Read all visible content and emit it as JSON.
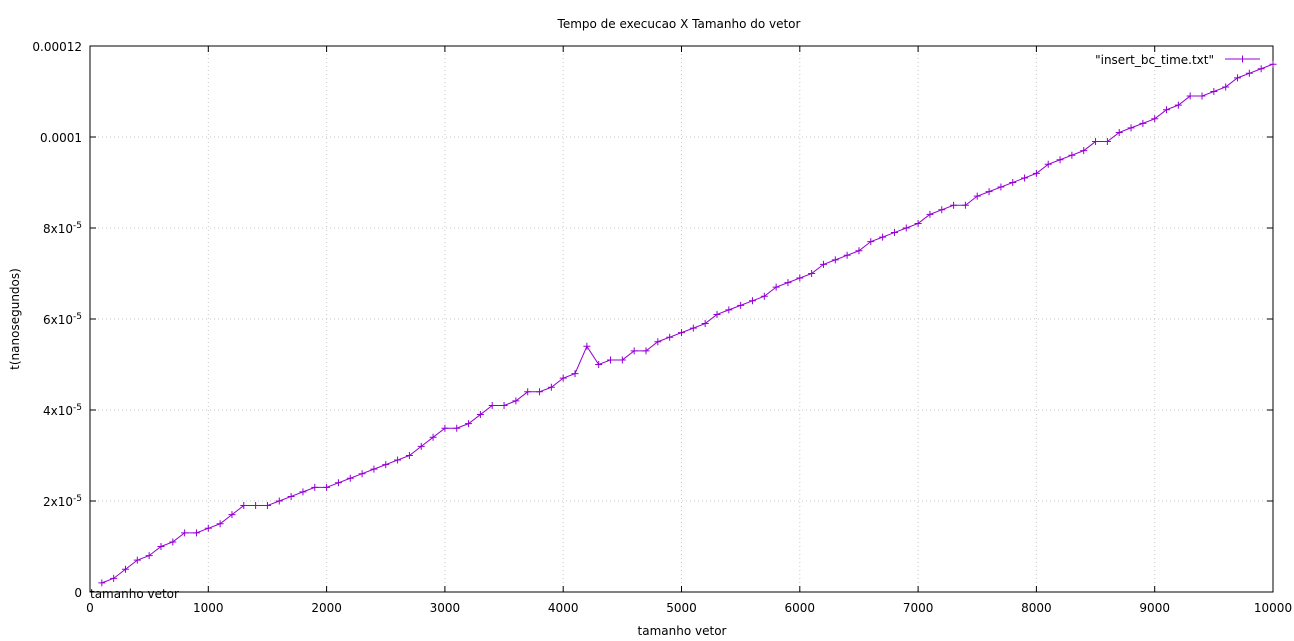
{
  "chart_data": {
    "type": "line",
    "title": "Tempo de execucao X Tamanho do vetor",
    "xlabel": "tamanho vetor",
    "ylabel": "t(nanosegundos)",
    "xlim": [
      0,
      10000
    ],
    "ylim": [
      0,
      0.00012
    ],
    "grid": true,
    "legend_position": "top-right",
    "annotation": "tamanho vetor",
    "x_ticks": [
      0,
      1000,
      2000,
      3000,
      4000,
      5000,
      6000,
      7000,
      8000,
      9000,
      10000
    ],
    "x_tick_labels": [
      "0",
      "1000",
      "2000",
      "3000",
      "4000",
      "5000",
      "6000",
      "7000",
      "8000",
      "9000",
      "10000"
    ],
    "y_ticks": [
      0,
      2e-05,
      4e-05,
      6e-05,
      8e-05,
      0.0001,
      0.00012
    ],
    "y_tick_mantissas": [
      "0",
      "2x10",
      "4x10",
      "6x10",
      "8x10",
      "0.0001",
      "0.00012"
    ],
    "y_tick_exponents": [
      "",
      "-5",
      "-5",
      "-5",
      "-5",
      "",
      ""
    ],
    "series": [
      {
        "name": "\"insert_bc_time.txt\"",
        "color": "#9400d3",
        "marker": "plus",
        "x": [
          100,
          200,
          300,
          400,
          500,
          600,
          700,
          800,
          900,
          1000,
          1100,
          1200,
          1300,
          1400,
          1500,
          1600,
          1700,
          1800,
          1900,
          2000,
          2100,
          2200,
          2300,
          2400,
          2500,
          2600,
          2700,
          2800,
          2900,
          3000,
          3100,
          3200,
          3300,
          3400,
          3500,
          3600,
          3700,
          3800,
          3900,
          4000,
          4100,
          4200,
          4300,
          4400,
          4500,
          4600,
          4700,
          4800,
          4900,
          5000,
          5100,
          5200,
          5300,
          5400,
          5500,
          5600,
          5700,
          5800,
          5900,
          6000,
          6100,
          6200,
          6300,
          6400,
          6500,
          6600,
          6700,
          6800,
          6900,
          7000,
          7100,
          7200,
          7300,
          7400,
          7500,
          7600,
          7700,
          7800,
          7900,
          8000,
          8100,
          8200,
          8300,
          8400,
          8500,
          8600,
          8700,
          8800,
          8900,
          9000,
          9100,
          9200,
          9300,
          9400,
          9500,
          9600,
          9700,
          9800,
          9900,
          10000
        ],
        "y": [
          2e-06,
          3e-06,
          5e-06,
          7e-06,
          8e-06,
          1e-05,
          1.1e-05,
          1.3e-05,
          1.3e-05,
          1.4e-05,
          1.5e-05,
          1.7e-05,
          1.9e-05,
          1.9e-05,
          1.9e-05,
          2e-05,
          2.1e-05,
          2.2e-05,
          2.3e-05,
          2.3e-05,
          2.4e-05,
          2.5e-05,
          2.6e-05,
          2.7e-05,
          2.8e-05,
          2.9e-05,
          3e-05,
          3.2e-05,
          3.4e-05,
          3.6e-05,
          3.6e-05,
          3.7e-05,
          3.9e-05,
          4.1e-05,
          4.1e-05,
          4.2e-05,
          4.4e-05,
          4.4e-05,
          4.5e-05,
          4.7e-05,
          4.8e-05,
          5.4e-05,
          5e-05,
          5.1e-05,
          5.1e-05,
          5.3e-05,
          5.3e-05,
          5.5e-05,
          5.6e-05,
          5.7e-05,
          5.8e-05,
          5.9e-05,
          6.1e-05,
          6.2e-05,
          6.3e-05,
          6.4e-05,
          6.5e-05,
          6.7e-05,
          6.8e-05,
          6.9e-05,
          7e-05,
          7.2e-05,
          7.3e-05,
          7.4e-05,
          7.5e-05,
          7.7e-05,
          7.8e-05,
          7.9e-05,
          8e-05,
          8.1e-05,
          8.3e-05,
          8.4e-05,
          8.5e-05,
          8.5e-05,
          8.7e-05,
          8.8e-05,
          8.9e-05,
          9e-05,
          9.1e-05,
          9.2e-05,
          9.4e-05,
          9.5e-05,
          9.6e-05,
          9.7e-05,
          9.9e-05,
          9.9e-05,
          0.000101,
          0.000102,
          0.000103,
          0.000104,
          0.000106,
          0.000107,
          0.000109,
          0.000109,
          0.00011,
          0.000111,
          0.000113,
          0.000114,
          0.000115,
          0.000116
        ]
      }
    ]
  }
}
